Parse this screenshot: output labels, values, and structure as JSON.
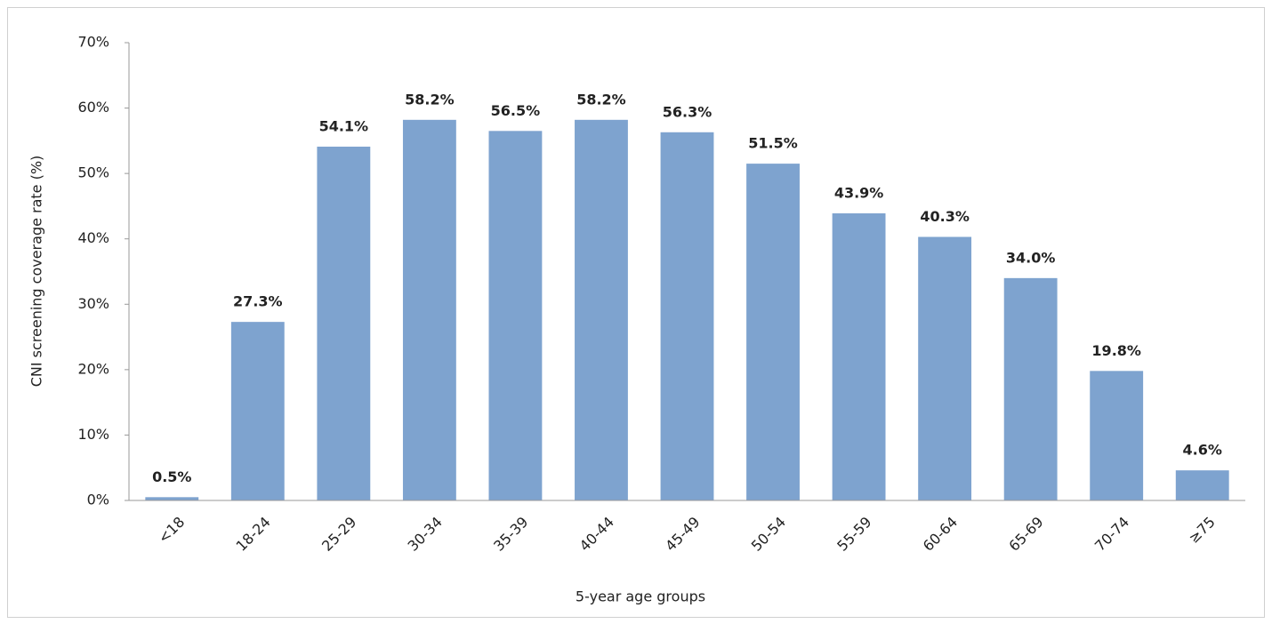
{
  "chart_data": {
    "type": "bar",
    "y_label": "CNI screening coverage rate (%)",
    "x_label": "5-year age groups",
    "categories": [
      "<18",
      "18-24",
      "25-29",
      "30-34",
      "35-39",
      "40-44",
      "45-49",
      "50-54",
      "55-59",
      "60-64",
      "65-69",
      "70-74",
      "≥75"
    ],
    "values": [
      0.5,
      27.3,
      54.1,
      58.2,
      56.5,
      58.2,
      56.3,
      51.5,
      43.9,
      40.3,
      34.0,
      19.8,
      4.6
    ],
    "value_labels": [
      "0.5%",
      "27.3%",
      "54.1%",
      "58.2%",
      "56.5%",
      "58.2%",
      "56.3%",
      "51.5%",
      "43.9%",
      "40.3%",
      "34.0%",
      "19.8%",
      "4.6%"
    ],
    "color": "#7ea3cf",
    "ylim": [
      0,
      70
    ],
    "yticks": [
      {
        "value": 0,
        "label": "0%"
      },
      {
        "value": 10,
        "label": "10%"
      },
      {
        "value": 20,
        "label": "20%"
      },
      {
        "value": 30,
        "label": "30%"
      },
      {
        "value": 40,
        "label": "40%"
      },
      {
        "value": 50,
        "label": "50%"
      },
      {
        "value": 60,
        "label": "60%"
      },
      {
        "value": 70,
        "label": "70%"
      }
    ],
    "grid": false
  }
}
